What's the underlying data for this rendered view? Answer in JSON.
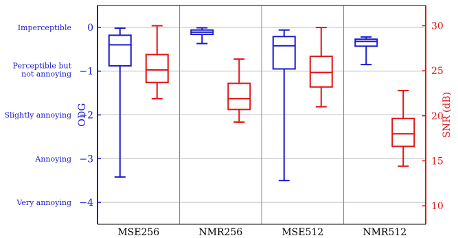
{
  "chart_data": {
    "type": "boxplot",
    "categories": [
      "MSE256",
      "NMR256",
      "MSE512",
      "NMR512"
    ],
    "left_axis": {
      "label": "ODG",
      "range": [
        -4.5,
        0.5
      ],
      "ticks": [
        {
          "value": 0,
          "text": "0"
        },
        {
          "value": -1,
          "text": "−1"
        },
        {
          "value": -2,
          "text": "−2"
        },
        {
          "value": -3,
          "text": "−3"
        },
        {
          "value": -4,
          "text": "−4"
        }
      ],
      "descriptors": [
        {
          "value": 0,
          "lines": [
            "Imperceptible"
          ]
        },
        {
          "value": -1,
          "lines": [
            "Perceptible but",
            "not annoying"
          ]
        },
        {
          "value": -2,
          "lines": [
            "Slightly annoying"
          ]
        },
        {
          "value": -3,
          "lines": [
            "Annoying"
          ]
        },
        {
          "value": -4,
          "lines": [
            "Very annoying"
          ]
        }
      ]
    },
    "right_axis": {
      "label": "SNR (dB)",
      "range": [
        7.95,
        32.25
      ],
      "ticks": [
        {
          "value": 30,
          "text": "30"
        },
        {
          "value": 25,
          "text": "25"
        },
        {
          "value": 20,
          "text": "20"
        },
        {
          "value": 15,
          "text": "15"
        },
        {
          "value": 10,
          "text": "10"
        }
      ]
    },
    "series": [
      {
        "name": "ODG",
        "axis": "left",
        "color": "#1a1acc",
        "boxes": [
          {
            "whisker_low": -3.42,
            "q1": -0.88,
            "median": -0.4,
            "q3": -0.18,
            "whisker_high": -0.02
          },
          {
            "whisker_low": -0.37,
            "q1": -0.16,
            "median": -0.11,
            "q3": -0.06,
            "whisker_high": -0.01
          },
          {
            "whisker_low": -3.5,
            "q1": -0.95,
            "median": -0.42,
            "q3": -0.21,
            "whisker_high": -0.06
          },
          {
            "whisker_low": -0.85,
            "q1": -0.43,
            "median": -0.32,
            "q3": -0.27,
            "whisker_high": -0.22
          }
        ]
      },
      {
        "name": "SNR (dB)",
        "axis": "right",
        "color": "#e01414",
        "boxes": [
          {
            "whisker_low": 21.9,
            "q1": 23.7,
            "median": 25.1,
            "q3": 26.8,
            "whisker_high": 30.0
          },
          {
            "whisker_low": 19.3,
            "q1": 20.7,
            "median": 21.9,
            "q3": 23.6,
            "whisker_high": 26.3
          },
          {
            "whisker_low": 21.0,
            "q1": 23.2,
            "median": 24.8,
            "q3": 26.6,
            "whisker_high": 29.8
          },
          {
            "whisker_low": 14.4,
            "q1": 16.6,
            "median": 18.0,
            "q3": 19.7,
            "whisker_high": 22.8
          }
        ]
      }
    ],
    "grid": true
  }
}
